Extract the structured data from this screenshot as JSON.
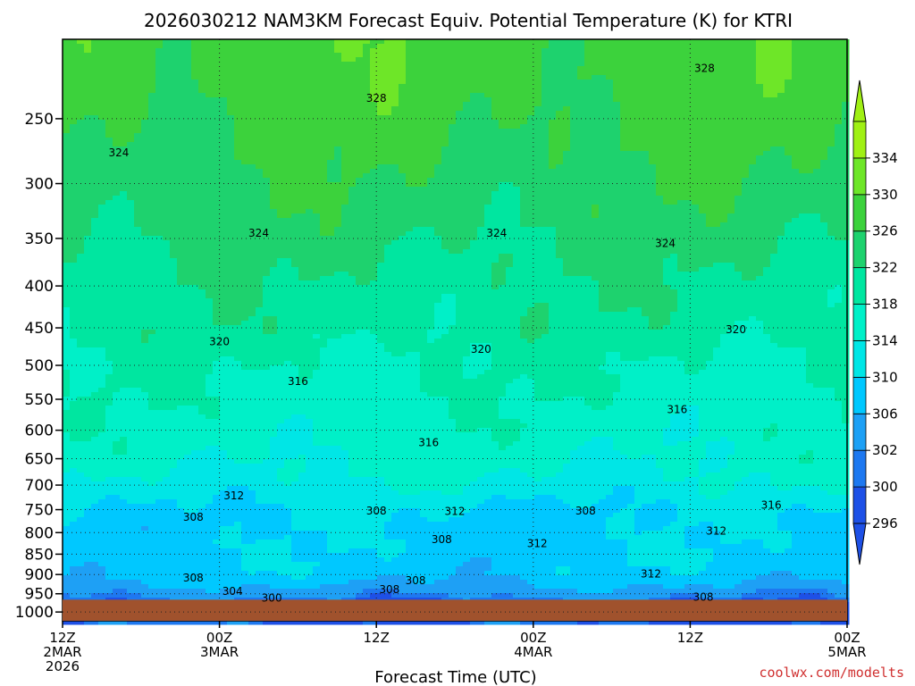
{
  "chart_data": {
    "type": "heatmap",
    "title": "2026030212 NAM3KM Forecast Equiv. Potential Temperature (K) for KTRI",
    "xlabel": "Forecast Time (UTC)",
    "ylabel": "",
    "credit": "coolwx.com/modelts",
    "x_ticks": [
      {
        "hours": 0,
        "lines": [
          "12Z",
          "2MAR",
          "2026"
        ]
      },
      {
        "hours": 12,
        "lines": [
          "00Z",
          "3MAR"
        ]
      },
      {
        "hours": 24,
        "lines": [
          "12Z"
        ]
      },
      {
        "hours": 36,
        "lines": [
          "00Z",
          "4MAR"
        ]
      },
      {
        "hours": 48,
        "lines": [
          "12Z"
        ]
      },
      {
        "hours": 60,
        "lines": [
          "00Z",
          "5MAR"
        ]
      }
    ],
    "xlim": [
      0,
      60
    ],
    "y_scale": "log-pressure",
    "ylim": [
      1025,
      200
    ],
    "y_ticks": [
      250,
      300,
      350,
      400,
      450,
      500,
      550,
      600,
      650,
      700,
      750,
      800,
      850,
      900,
      950,
      1000
    ],
    "ground_pressure": 966,
    "colorbar": {
      "levels": [
        296,
        300,
        302,
        306,
        310,
        314,
        318,
        322,
        326,
        330,
        334
      ],
      "label_levels": [
        296,
        300,
        302,
        306,
        310,
        314,
        318,
        322,
        326,
        330,
        334
      ],
      "colors": [
        "#1e50e6",
        "#1e78f0",
        "#1ea0f5",
        "#00c8ff",
        "#00e6e6",
        "#00f0c8",
        "#00e6a0",
        "#1ed26e",
        "#3cd23c",
        "#6ee628",
        "#a0f014"
      ],
      "extend": "both"
    },
    "profile_levels": [
      975,
      950,
      925,
      900,
      850,
      800,
      750,
      700,
      650,
      600,
      550,
      500,
      450,
      400,
      350,
      300,
      250,
      220
    ],
    "profile_values": [
      300,
      303,
      306,
      308,
      309,
      309,
      310,
      313,
      315,
      316,
      317,
      318,
      320,
      321,
      323,
      325,
      327,
      328
    ],
    "contour_labels": [
      {
        "text": "328",
        "hours": 49.1,
        "p": 217
      },
      {
        "text": "328",
        "hours": 24.0,
        "p": 236
      },
      {
        "text": "324",
        "hours": 4.3,
        "p": 275
      },
      {
        "text": "324",
        "hours": 15.0,
        "p": 345
      },
      {
        "text": "324",
        "hours": 33.2,
        "p": 345
      },
      {
        "text": "324",
        "hours": 46.1,
        "p": 355
      },
      {
        "text": "320",
        "hours": 12.0,
        "p": 468
      },
      {
        "text": "320",
        "hours": 32.0,
        "p": 478
      },
      {
        "text": "320",
        "hours": 51.5,
        "p": 452
      },
      {
        "text": "316",
        "hours": 18.0,
        "p": 523
      },
      {
        "text": "316",
        "hours": 28.0,
        "p": 621
      },
      {
        "text": "316",
        "hours": 47.0,
        "p": 566
      },
      {
        "text": "316",
        "hours": 54.2,
        "p": 741
      },
      {
        "text": "312",
        "hours": 13.1,
        "p": 721
      },
      {
        "text": "312",
        "hours": 30.0,
        "p": 754
      },
      {
        "text": "312",
        "hours": 36.3,
        "p": 825
      },
      {
        "text": "312",
        "hours": 50.0,
        "p": 796
      },
      {
        "text": "312",
        "hours": 45.0,
        "p": 898
      },
      {
        "text": "308",
        "hours": 10.0,
        "p": 766
      },
      {
        "text": "308",
        "hours": 24.0,
        "p": 753
      },
      {
        "text": "308",
        "hours": 29.0,
        "p": 816
      },
      {
        "text": "308",
        "hours": 40.0,
        "p": 753
      },
      {
        "text": "308",
        "hours": 10.0,
        "p": 909
      },
      {
        "text": "308",
        "hours": 27.0,
        "p": 915
      },
      {
        "text": "308",
        "hours": 25.0,
        "p": 939
      },
      {
        "text": "308",
        "hours": 49.0,
        "p": 959
      },
      {
        "text": "304",
        "hours": 13.0,
        "p": 943
      },
      {
        "text": "300",
        "hours": 16.0,
        "p": 962
      }
    ]
  }
}
